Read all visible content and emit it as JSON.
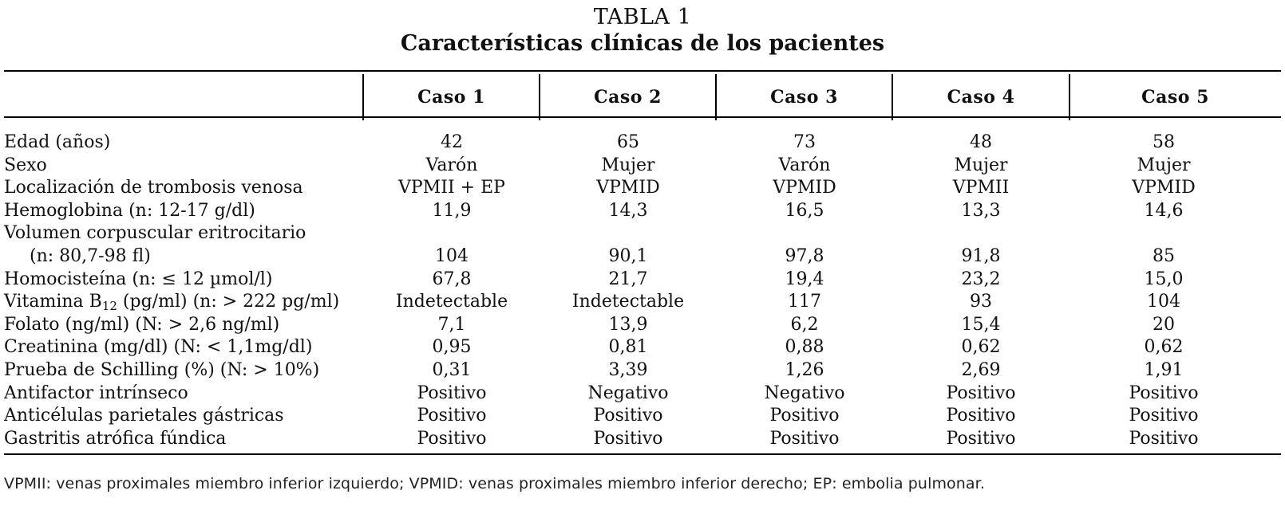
{
  "table": {
    "number": "TABLA 1",
    "title": "Características clínicas de los pacientes",
    "columns": [
      "",
      "Caso 1",
      "Caso 2",
      "Caso 3",
      "Caso 4",
      "Caso 5"
    ],
    "rows": [
      {
        "label": "Edad (años)",
        "values": [
          "42",
          "65",
          "73",
          "48",
          "58"
        ]
      },
      {
        "label": "Sexo",
        "values": [
          "Varón",
          "Mujer",
          "Varón",
          "Mujer",
          "Mujer"
        ]
      },
      {
        "label": "Localización de trombosis venosa",
        "values": [
          "VPMII + EP",
          "VPMID",
          "VPMID",
          "VPMII",
          "VPMID"
        ]
      },
      {
        "label": "Hemoglobina (n: 12-17 g/dl)",
        "values": [
          "11,9",
          "14,3",
          "16,5",
          "13,3",
          "14,6"
        ]
      },
      {
        "label": "Volumen corpuscular eritrocitario",
        "label_line2": "(n: 80,7-98 fl)",
        "values": [
          "104",
          "90,1",
          "97,8",
          "91,8",
          "85"
        ]
      },
      {
        "label": "Homocisteína (n: ≤ 12 µmol/l)",
        "values": [
          "67,8",
          "21,7",
          "19,4",
          "23,2",
          "15,0"
        ]
      },
      {
        "label_pre": "Vitamina B",
        "label_sub": "12",
        "label_post": " (pg/ml) (n: > 222 pg/ml)",
        "values": [
          "Indetectable",
          "Indetectable",
          "117",
          "93",
          "104"
        ]
      },
      {
        "label": "Folato (ng/ml) (N: > 2,6 ng/ml)",
        "values": [
          "7,1",
          "13,9",
          "6,2",
          "15,4",
          "20"
        ]
      },
      {
        "label": "Creatinina (mg/dl) (N: < 1,1mg/dl)",
        "values": [
          "0,95",
          "0,81",
          "0,88",
          "0,62",
          "0,62"
        ]
      },
      {
        "label": "Prueba de Schilling (%) (N: > 10%)",
        "values": [
          "0,31",
          "3,39",
          "1,26",
          "2,69",
          "1,91"
        ]
      },
      {
        "label": "Antifactor intrínseco",
        "values": [
          "Positivo",
          "Negativo",
          "Negativo",
          "Positivo",
          "Positivo"
        ]
      },
      {
        "label": "Anticélulas parietales gástricas",
        "values": [
          "Positivo",
          "Positivo",
          "Positivo",
          "Positivo",
          "Positivo"
        ]
      },
      {
        "label": "Gastritis atrófica fúndica",
        "values": [
          "Positivo",
          "Positivo",
          "Positivo",
          "Positivo",
          "Positivo"
        ]
      }
    ],
    "footnote": "VPMII: venas proximales miembro inferior izquierdo; VPMID: venas proximales miembro inferior derecho; EP: embolia pulmonar."
  }
}
